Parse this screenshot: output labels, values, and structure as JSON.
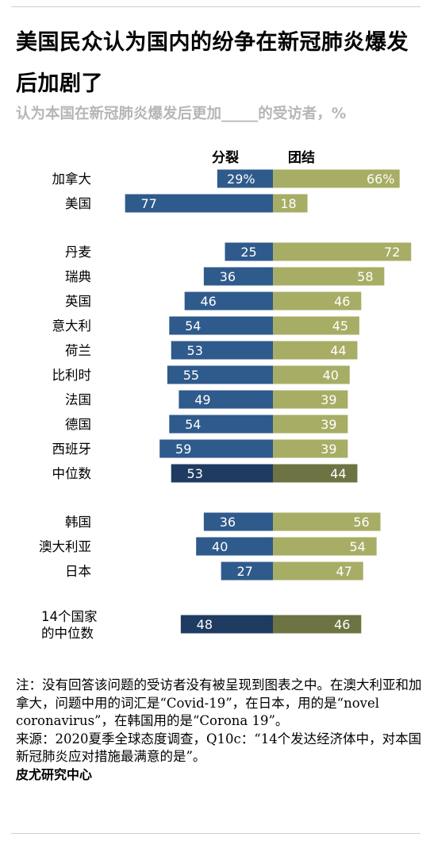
{
  "title": "美国民众认为国内的纷争在新冠肺炎爆发后加剧了",
  "subtitle": "认为本国在新冠肺炎爆发后更加_____的受访者，%",
  "colors": {
    "divided": "#2f5a8c",
    "divided_median": "#1f3b61",
    "united": "#a7ad65",
    "united_median": "#6e7343",
    "bar_text": "#ffffff"
  },
  "chart_data": {
    "type": "bar",
    "orientation": "diverging-horizontal",
    "series": [
      {
        "name": "分裂",
        "side": "left"
      },
      {
        "name": "团结",
        "side": "right"
      }
    ],
    "rows": [
      {
        "label": "加拿大",
        "divided": 29,
        "divided_label": "29%",
        "united": 66,
        "united_label": "66%",
        "group": 0
      },
      {
        "label": "美国",
        "divided": 77,
        "divided_label": "77",
        "united": 18,
        "united_label": "18",
        "group": 0
      },
      {
        "label": "丹麦",
        "divided": 25,
        "divided_label": "25",
        "united": 72,
        "united_label": "72",
        "group": 1
      },
      {
        "label": "瑞典",
        "divided": 36,
        "divided_label": "36",
        "united": 58,
        "united_label": "58",
        "group": 1
      },
      {
        "label": "英国",
        "divided": 46,
        "divided_label": "46",
        "united": 46,
        "united_label": "46",
        "group": 1
      },
      {
        "label": "意大利",
        "divided": 54,
        "divided_label": "54",
        "united": 45,
        "united_label": "45",
        "group": 1
      },
      {
        "label": "荷兰",
        "divided": 53,
        "divided_label": "53",
        "united": 44,
        "united_label": "44",
        "group": 1
      },
      {
        "label": "比利时",
        "divided": 55,
        "divided_label": "55",
        "united": 40,
        "united_label": "40",
        "group": 1
      },
      {
        "label": "法国",
        "divided": 49,
        "divided_label": "49",
        "united": 39,
        "united_label": "39",
        "group": 1
      },
      {
        "label": "德国",
        "divided": 54,
        "divided_label": "54",
        "united": 39,
        "united_label": "39",
        "group": 1
      },
      {
        "label": "西班牙",
        "divided": 59,
        "divided_label": "59",
        "united": 39,
        "united_label": "39",
        "group": 1
      },
      {
        "label": "中位数",
        "divided": 53,
        "divided_label": "53",
        "united": 44,
        "united_label": "44",
        "group": 1,
        "median": true
      },
      {
        "label": "韩国",
        "divided": 36,
        "divided_label": "36",
        "united": 56,
        "united_label": "56",
        "group": 2
      },
      {
        "label": "澳大利亚",
        "divided": 40,
        "divided_label": "40",
        "united": 54,
        "united_label": "54",
        "group": 2
      },
      {
        "label": "日本",
        "divided": 27,
        "divided_label": "27",
        "united": 47,
        "united_label": "47",
        "group": 2
      },
      {
        "label": "14个国家\n的中位数",
        "divided": 48,
        "divided_label": "48",
        "united": 46,
        "united_label": "46",
        "group": 3,
        "median": true
      }
    ]
  },
  "notes": [
    "注：没有回答该问题的受访者没有被呈现到图表之中。在澳大利亚和加拿大，问题中用的词汇是“Covid-19”，在日本，用的是“novel coronavirus”，在韩国用的是“Corona 19”。",
    "来源：2020夏季全球态度调查，Q10c：“14个发达经济体中，对本国新冠肺炎应对措施最满意的是”。"
  ],
  "source_org": "皮尤研究中心"
}
